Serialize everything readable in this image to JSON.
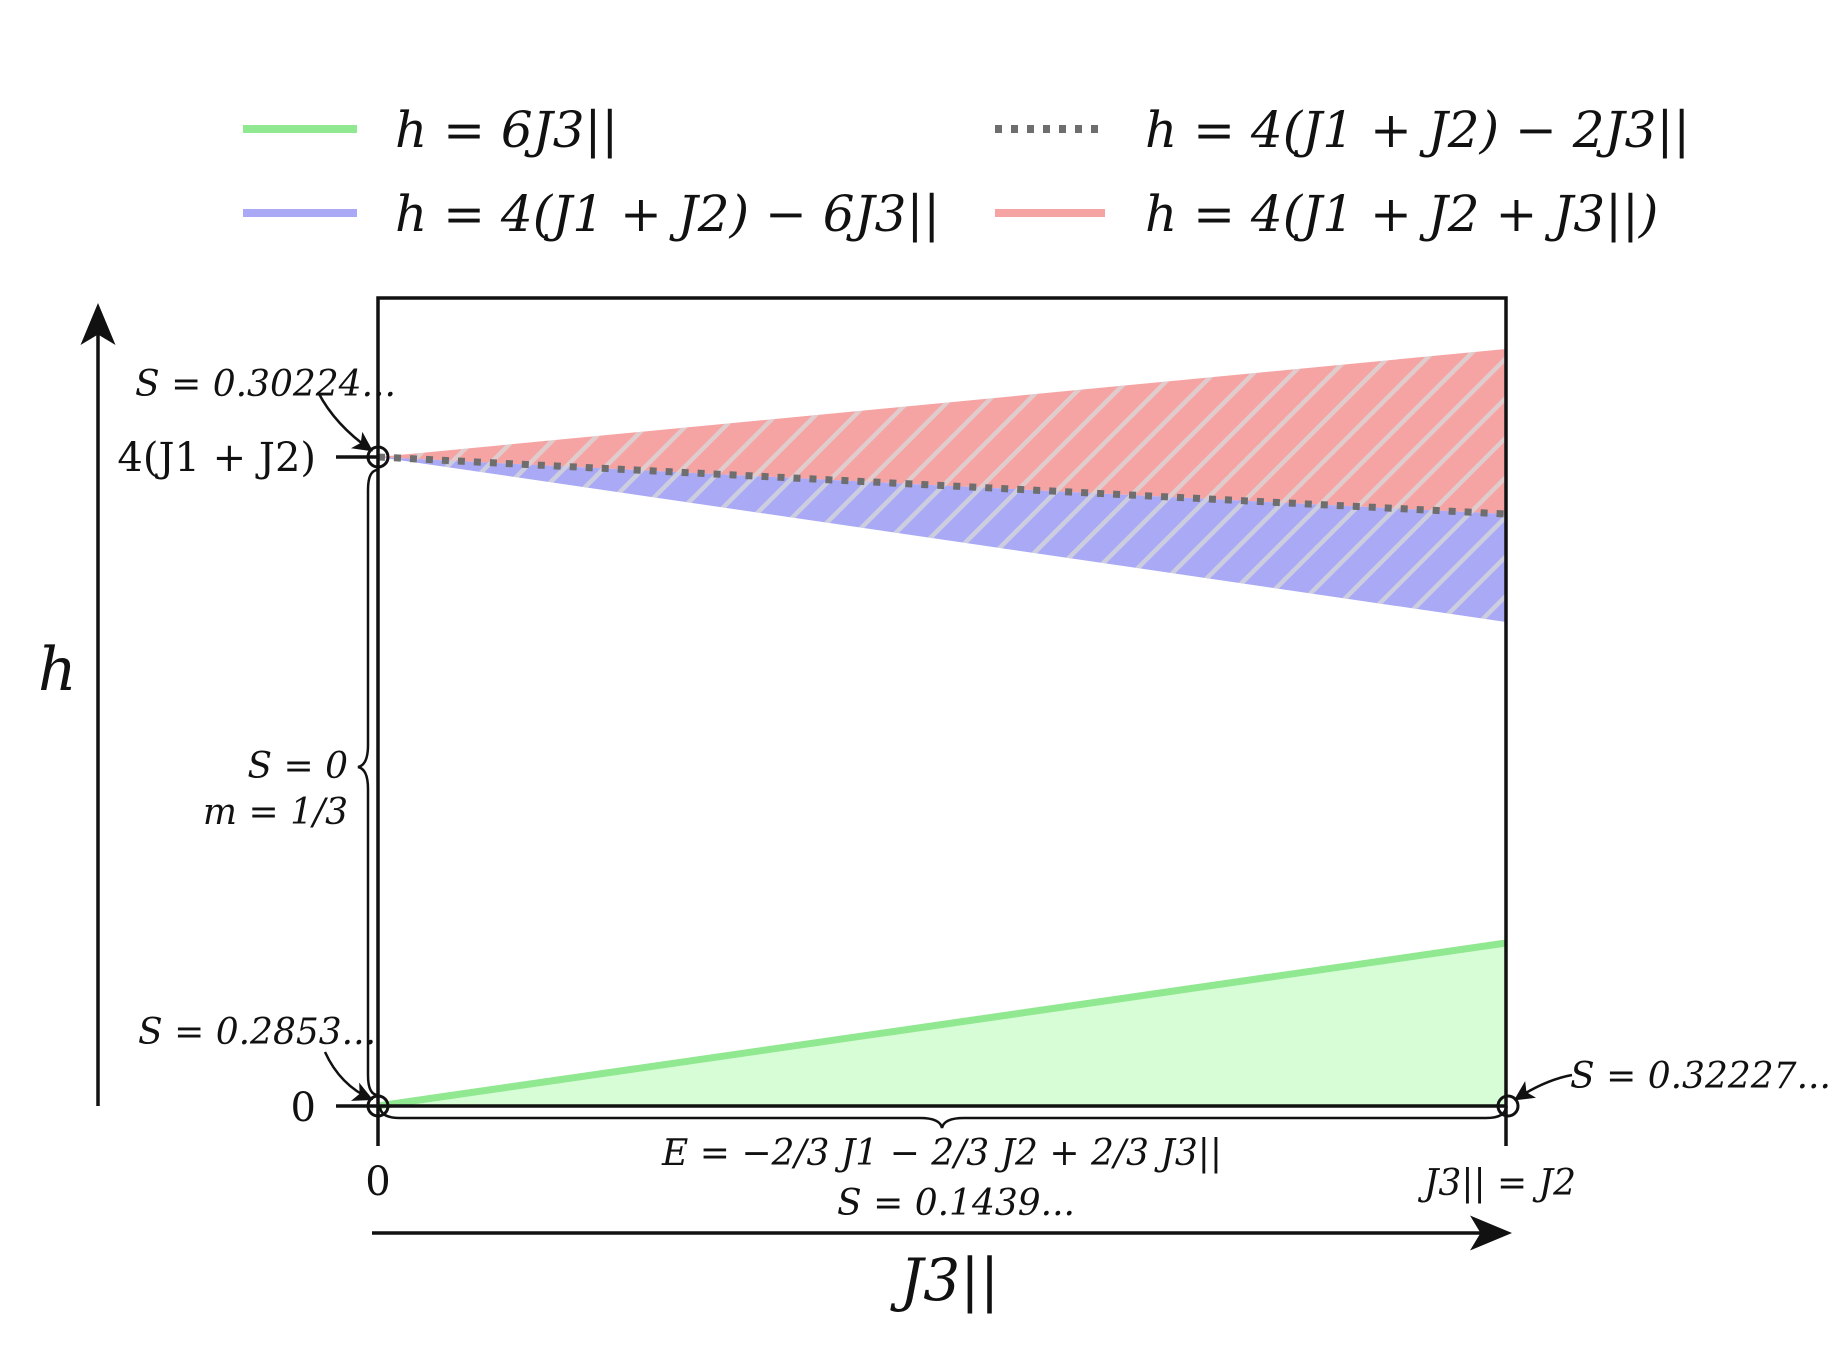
{
  "legend": [
    {
      "label": "h = 6J3||",
      "color": "#90e890",
      "style": "solid"
    },
    {
      "label": "h = 4(J1 + J2) − 2J3||",
      "color": "#6e6e6e",
      "style": "dotted"
    },
    {
      "label": "h = 4(J1 + J2) − 6J3||",
      "color": "#a9a9f5",
      "style": "solid"
    },
    {
      "label": "h = 4(J1 + J2 + J3||)",
      "color": "#f5a3a3",
      "style": "solid"
    }
  ],
  "axes": {
    "y_label": "h",
    "x_label": "J3||",
    "y_tick_top": "4(J1 + J2)",
    "y_tick_bottom": "0",
    "x_tick_left": "0",
    "x_tick_right": "J3|| = J2"
  },
  "annotations": {
    "s_top_left": "S = 0.30224...",
    "s_bottom_left": "S = 0.2853...",
    "s_bottom_right": "S = 0.32227...",
    "middle_s": "S = 0",
    "middle_m": "m = 1/3",
    "bottom_energy": "E = −2/3 J1 − 2/3 J2 + 2/3 J3||",
    "bottom_s": "S = 0.1439..."
  },
  "colors": {
    "green_line": "#90e890",
    "green_fill": "#d6fdd6",
    "blue_fill": "#a9a9f5",
    "red_fill": "#f5a3a3",
    "dotted": "#6e6e6e",
    "hatch": "#d9d9d9"
  }
}
